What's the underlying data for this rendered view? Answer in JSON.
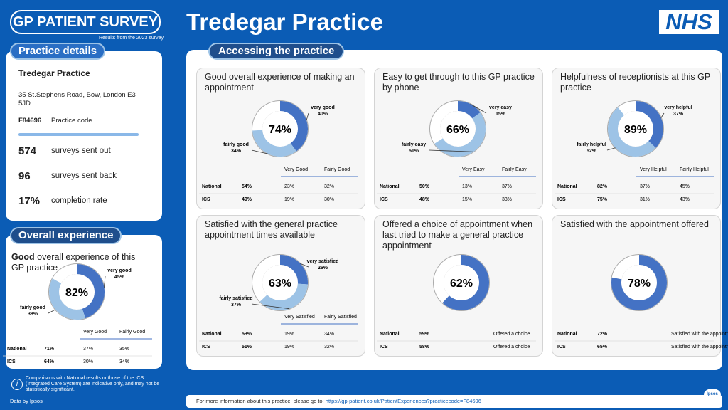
{
  "header": {
    "logo": "GP PATIENT SURVEY",
    "subtitle": "Results from the 2023 survey",
    "title": "Tredegar Practice",
    "nhs": "NHS"
  },
  "practice_details": {
    "heading": "Practice details",
    "name": "Tredegar Practice",
    "address": "35 St.Stephens Road, Bow, London E3 5JD",
    "code": "F84696",
    "code_label": "Practice code",
    "stats": [
      {
        "value": "574",
        "label": "surveys sent out"
      },
      {
        "value": "96",
        "label": "surveys sent back"
      },
      {
        "value": "17%",
        "label": "completion rate"
      }
    ]
  },
  "overall": {
    "heading": "Overall experience",
    "description_bold": "Good",
    "description": "overall experience of this GP practice",
    "donut": {
      "total": 82,
      "total_label": "82%",
      "segments": [
        {
          "name": "very good",
          "value": 45,
          "label": "45%"
        },
        {
          "name": "fairly good",
          "value": 38,
          "label": "38%"
        }
      ],
      "columns": [
        "Very Good",
        "Fairly Good"
      ],
      "rows": [
        {
          "name": "National",
          "total": "71%",
          "values": [
            "37%",
            "35%"
          ]
        },
        {
          "name": "ICS",
          "total": "64%",
          "values": [
            "30%",
            "34%"
          ]
        }
      ]
    }
  },
  "accessing": {
    "heading": "Accessing the practice",
    "cards": [
      {
        "title": "Good overall experience of making an appointment",
        "total": 74,
        "total_label": "74%",
        "segments": [
          {
            "name": "very good",
            "value": 40,
            "label": "40%"
          },
          {
            "name": "fairly good",
            "value": 34,
            "label": "34%"
          }
        ],
        "columns": [
          "Very Good",
          "Fairly Good"
        ],
        "rows": [
          {
            "name": "National",
            "total": "54%",
            "values": [
              "23%",
              "32%"
            ]
          },
          {
            "name": "ICS",
            "total": "49%",
            "values": [
              "19%",
              "30%"
            ]
          }
        ]
      },
      {
        "title": "Easy to get through to this GP practice by phone",
        "total": 66,
        "total_label": "66%",
        "segments": [
          {
            "name": "very easy",
            "value": 15,
            "label": "15%"
          },
          {
            "name": "fairly easy",
            "value": 51,
            "label": "51%"
          }
        ],
        "columns": [
          "Very Easy",
          "Fairly Easy"
        ],
        "rows": [
          {
            "name": "National",
            "total": "50%",
            "values": [
              "13%",
              "37%"
            ]
          },
          {
            "name": "ICS",
            "total": "48%",
            "values": [
              "15%",
              "33%"
            ]
          }
        ]
      },
      {
        "title": "Helpfulness of receptionists at this GP practice",
        "total": 89,
        "total_label": "89%",
        "segments": [
          {
            "name": "very helpful",
            "value": 37,
            "label": "37%"
          },
          {
            "name": "fairly helpful",
            "value": 52,
            "label": "52%"
          }
        ],
        "columns": [
          "Very Helpful",
          "Fairly Helpful"
        ],
        "rows": [
          {
            "name": "National",
            "total": "82%",
            "values": [
              "37%",
              "45%"
            ]
          },
          {
            "name": "ICS",
            "total": "75%",
            "values": [
              "31%",
              "43%"
            ]
          }
        ]
      },
      {
        "title": "Satisfied with the general practice appointment times available",
        "total": 63,
        "total_label": "63%",
        "segments": [
          {
            "name": "very satisfied",
            "value": 26,
            "label": "26%"
          },
          {
            "name": "fairly satisfied",
            "value": 37,
            "label": "37%"
          }
        ],
        "columns": [
          "Very Satisfied",
          "Fairly Satisfied"
        ],
        "rows": [
          {
            "name": "National",
            "total": "53%",
            "values": [
              "19%",
              "34%"
            ]
          },
          {
            "name": "ICS",
            "total": "51%",
            "values": [
              "19%",
              "32%"
            ]
          }
        ]
      },
      {
        "title": "Offered a choice of appointment when last tried to make a general practice appointment",
        "total": 62,
        "total_label": "62%",
        "rows": [
          {
            "name": "National",
            "total": "59%",
            "values": [
              "Offered a choice"
            ]
          },
          {
            "name": "ICS",
            "total": "58%",
            "values": [
              "Offered a choice"
            ]
          }
        ]
      },
      {
        "title": "Satisfied with the appointment offered",
        "total": 78,
        "total_label": "78%",
        "rows": [
          {
            "name": "National",
            "total": "72%",
            "values": [
              "Satisfied with the appointment"
            ]
          },
          {
            "name": "ICS",
            "total": "65%",
            "values": [
              "Satisfied with the appointment"
            ]
          }
        ]
      }
    ]
  },
  "footer": {
    "note": "Comparisons with National results or those of the ICS (Integrated Care System) are indicative only, and may not be statistically significant.",
    "data_by": "Data by Ipsos",
    "more_info": "For more information about this practice, please go to:",
    "url": "https://gp-patient.co.uk/PatientExperiences?practicecode=F84696",
    "ipsos": "Ipsos"
  }
}
